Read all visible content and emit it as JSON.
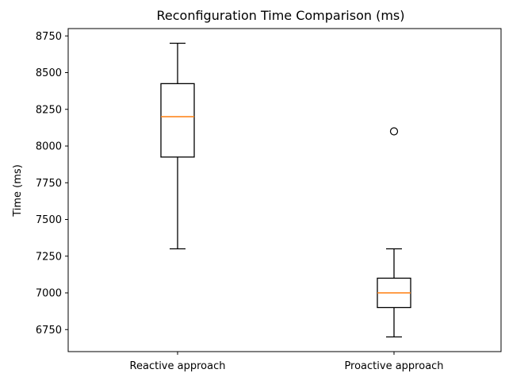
{
  "chart_data": {
    "type": "box",
    "title": "Reconfiguration Time Comparison (ms)",
    "xlabel": "",
    "ylabel": "Time (ms)",
    "ylim": [
      6600,
      8800
    ],
    "yticks": [
      6750,
      7000,
      7250,
      7500,
      7750,
      8000,
      8250,
      8500,
      8750
    ],
    "ytick_labels": [
      "6750",
      "7000",
      "7250",
      "7500",
      "7750",
      "8000",
      "8250",
      "8500",
      "8750"
    ],
    "grid": false,
    "categories": [
      "Reactive approach",
      "Proactive approach"
    ],
    "boxes": [
      {
        "category": "Reactive approach",
        "whisker_low": 7300,
        "q1": 7925,
        "median": 8200,
        "q3": 8425,
        "whisker_high": 8700,
        "outliers": []
      },
      {
        "category": "Proactive approach",
        "whisker_low": 6700,
        "q1": 6900,
        "median": 7000,
        "q3": 7100,
        "whisker_high": 7300,
        "outliers": [
          8100
        ]
      }
    ],
    "colors": {
      "box": "#000000",
      "median": "#ff7f0e",
      "outlier": "#000000"
    }
  }
}
